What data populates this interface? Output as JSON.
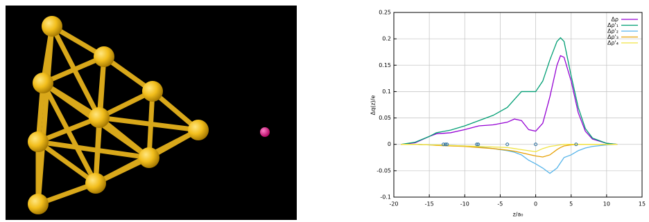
{
  "chart_data": {
    "type": "line",
    "x_label": "z/a₀",
    "y_label": "Δq(z)/e",
    "xlim": [
      -20,
      15
    ],
    "xticks": [
      -20,
      -15,
      -10,
      -5,
      0,
      5,
      10,
      15
    ],
    "ylim": [
      -0.1,
      0.25
    ],
    "yticks": [
      -0.1,
      -0.05,
      0,
      0.05,
      0.1,
      0.15,
      0.2,
      0.25
    ],
    "grid": true,
    "legend": "top-right",
    "x": [
      -19,
      -17,
      -15,
      -14,
      -12,
      -10,
      -8,
      -6,
      -4,
      -3,
      -2,
      -1,
      0,
      1,
      2,
      3,
      3.5,
      4,
      5,
      6,
      7,
      8,
      10,
      11.5
    ],
    "series": [
      {
        "name": "Δρ",
        "color": "#9400d3",
        "values": [
          0,
          0.003,
          0.015,
          0.02,
          0.022,
          0.028,
          0.035,
          0.037,
          0.042,
          0.048,
          0.045,
          0.028,
          0.025,
          0.04,
          0.09,
          0.15,
          0.168,
          0.165,
          0.12,
          0.06,
          0.025,
          0.01,
          0.002,
          0
        ]
      },
      {
        "name": "Δρ'₁",
        "color": "#009e73",
        "values": [
          0,
          0.004,
          0.015,
          0.022,
          0.027,
          0.035,
          0.045,
          0.055,
          0.07,
          0.085,
          0.1,
          0.1,
          0.1,
          0.12,
          0.16,
          0.195,
          0.202,
          0.195,
          0.13,
          0.07,
          0.03,
          0.012,
          0.002,
          0
        ]
      },
      {
        "name": "Δρ'₂",
        "color": "#56b4e9",
        "values": [
          0,
          0,
          -0.001,
          -0.001,
          -0.002,
          -0.003,
          -0.005,
          -0.008,
          -0.012,
          -0.015,
          -0.02,
          -0.03,
          -0.037,
          -0.045,
          -0.055,
          -0.045,
          -0.035,
          -0.025,
          -0.02,
          -0.012,
          -0.007,
          -0.004,
          -0.001,
          0
        ]
      },
      {
        "name": "Δρ'₃",
        "color": "#e69f00",
        "values": [
          0,
          0,
          -0.001,
          -0.002,
          -0.003,
          -0.004,
          -0.006,
          -0.008,
          -0.011,
          -0.013,
          -0.016,
          -0.019,
          -0.022,
          -0.024,
          -0.02,
          -0.01,
          -0.006,
          -0.003,
          -0.001,
          0,
          0,
          0,
          0,
          0
        ]
      },
      {
        "name": "Δρ'₄",
        "color": "#f0e442",
        "values": [
          0,
          0,
          -0.001,
          -0.001,
          -0.002,
          -0.003,
          -0.004,
          -0.005,
          -0.006,
          -0.008,
          -0.01,
          -0.012,
          -0.014,
          -0.008,
          -0.004,
          -0.002,
          -0.001,
          0,
          0,
          0,
          0,
          0,
          0,
          0
        ]
      }
    ],
    "atom_markers": {
      "color": "#2a6fa0",
      "x": [
        -13,
        -12.7,
        -12.5,
        -8.3,
        -8.1,
        -4,
        0,
        5.7
      ],
      "y": [
        0,
        0,
        0,
        0,
        0,
        0,
        0,
        0
      ]
    }
  }
}
